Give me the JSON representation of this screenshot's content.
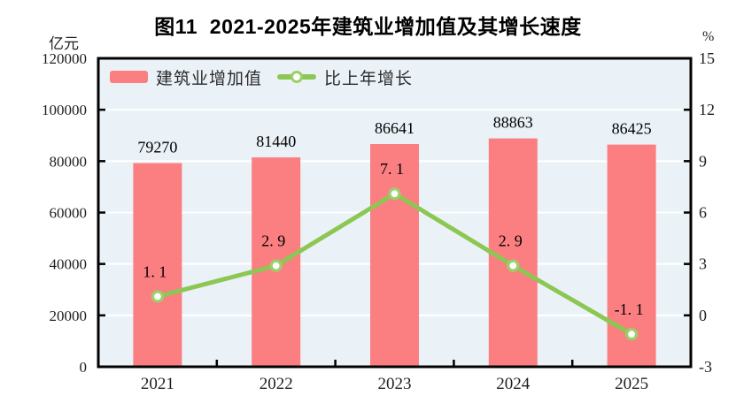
{
  "chart_data": {
    "type": "bar+line",
    "title": "图11  2021-2025年建筑业增加值及其增长速度",
    "categories": [
      "2021",
      "2022",
      "2023",
      "2024",
      "2025"
    ],
    "series": [
      {
        "name": "建筑业增加值",
        "type": "bar",
        "axis": "left",
        "color": "#fb7f80",
        "values": [
          79270,
          81440,
          86641,
          88863,
          86425
        ],
        "labels": [
          "79270",
          "81440",
          "86641",
          "88863",
          "86425"
        ]
      },
      {
        "name": "比上年增长",
        "type": "line",
        "axis": "right",
        "color": "#8cc653",
        "marker_ring_color": "#9ccf6a",
        "marker_fill": "#ffffff",
        "values": [
          1.1,
          2.9,
          7.1,
          2.9,
          -1.1
        ],
        "labels": [
          "1. 1",
          "2. 9",
          "7. 1",
          "2. 9",
          "-1. 1"
        ]
      }
    ],
    "left_axis": {
      "unit": "亿元",
      "min": 0,
      "max": 120000,
      "step": 20000,
      "ticks": [
        "0",
        "20000",
        "40000",
        "60000",
        "80000",
        "100000",
        "120000"
      ]
    },
    "right_axis": {
      "unit": "%",
      "min": -3,
      "max": 15,
      "step": 3,
      "ticks": [
        "-3",
        "0",
        "3",
        "6",
        "9",
        "12",
        "15"
      ]
    },
    "plot_bg": "#ebf2f7",
    "grid_color": "#ffffff",
    "axis_color": "#000000",
    "text_color": "#1f1f1f",
    "legend_position": "top-left-inside",
    "grid": true
  }
}
